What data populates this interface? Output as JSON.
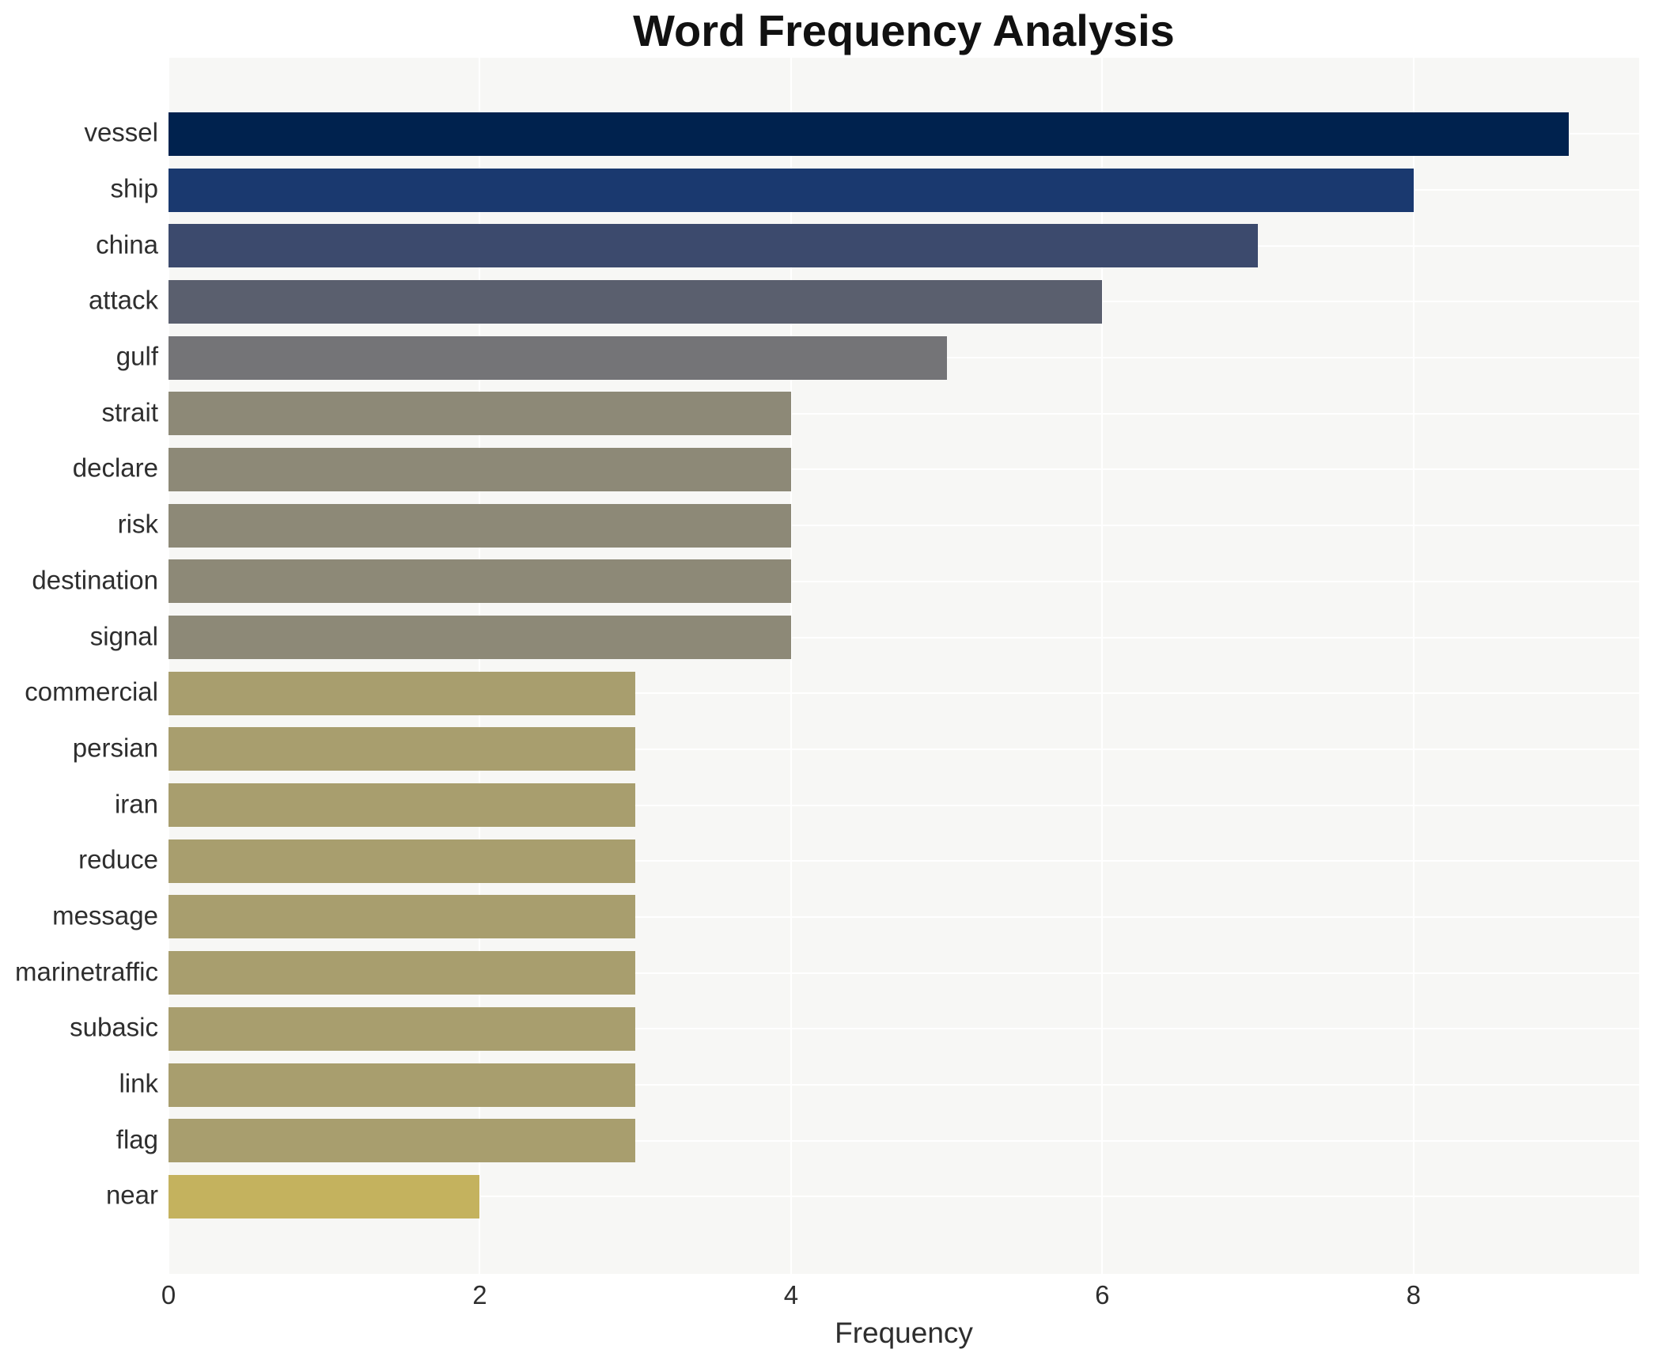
{
  "chart_data": {
    "type": "bar",
    "orientation": "horizontal",
    "title": "Word Frequency Analysis",
    "xlabel": "Frequency",
    "ylabel": "",
    "legend": "none",
    "grid": "white horizontal and vertical gridlines on light panel",
    "plot_bg": "#f7f7f5",
    "grid_color": "#ffffff",
    "xlim": [
      0,
      9.45
    ],
    "xticks": [
      0,
      2,
      4,
      6,
      8
    ],
    "categories": [
      "vessel",
      "ship",
      "china",
      "attack",
      "gulf",
      "strait",
      "declare",
      "risk",
      "destination",
      "signal",
      "commercial",
      "persian",
      "iran",
      "reduce",
      "message",
      "marinetraffic",
      "subasic",
      "link",
      "flag",
      "near"
    ],
    "values": [
      9,
      8,
      7,
      6,
      5,
      4,
      4,
      4,
      4,
      4,
      3,
      3,
      3,
      3,
      3,
      3,
      3,
      3,
      3,
      2
    ],
    "bar_colors": [
      "#00224e",
      "#1a396f",
      "#3c4a6d",
      "#5a5f6e",
      "#747477",
      "#8d8977",
      "#8d8977",
      "#8d8977",
      "#8d8977",
      "#8d8977",
      "#a89e6e",
      "#a89e6e",
      "#a89e6e",
      "#a89e6e",
      "#a89e6e",
      "#a89e6e",
      "#a89e6e",
      "#a89e6e",
      "#a89e6e",
      "#c4b25e"
    ],
    "colors": {
      "title_text": "#111111",
      "axis_text": "#2e2e2e"
    }
  }
}
